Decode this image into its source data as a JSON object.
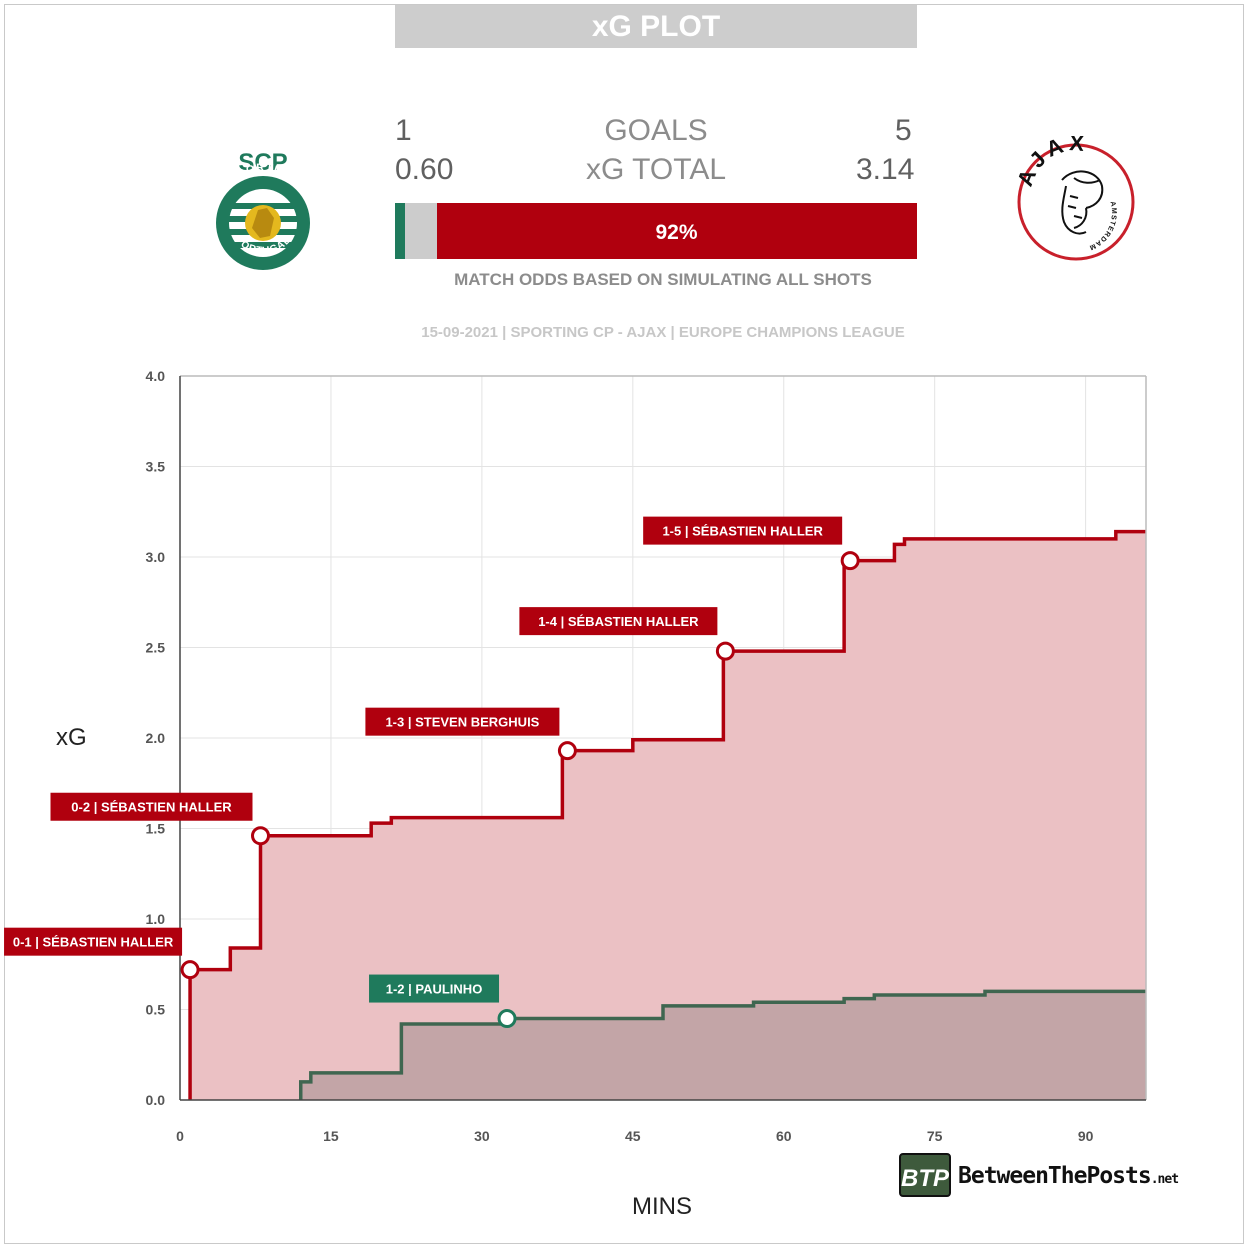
{
  "header": {
    "title": "xG PLOT"
  },
  "scoreboard": {
    "home": {
      "goals": "1",
      "xg": "0.60"
    },
    "away": {
      "goals": "5",
      "xg": "3.14"
    },
    "goals_label": "GOALS",
    "xg_label": "xG TOTAL"
  },
  "odds": {
    "home_win": 0.02,
    "draw": 0.06,
    "away_win": 0.92,
    "away_label": "92%",
    "caption": "MATCH ODDS BASED ON SIMULATING ALL SHOTS"
  },
  "match_info": "15-09-2021 | SPORTING CP - AJAX | EUROPE CHAMPIONS LEAGUE",
  "logos": {
    "home_logo": "sporting-cp-crest",
    "home_lettering": [
      "SCP",
      "SPORTING",
      "PORTUGAL"
    ],
    "away_logo": "ajax-crest",
    "away_lettering": [
      "AJAX",
      "AMSTERDAM"
    ]
  },
  "colors": {
    "home": "#1f7a5c",
    "home_line": "#3f6650",
    "away": "#b0000e",
    "away_fill": "#ebc1c4",
    "draw": "#cccccc"
  },
  "chart_data": {
    "type": "line",
    "title": "",
    "xlabel": "MINS",
    "ylabel": "xG",
    "xlim": [
      0,
      96
    ],
    "ylim": [
      0,
      4
    ],
    "x_ticks": [
      0,
      15,
      30,
      45,
      60,
      75,
      90
    ],
    "y_ticks": [
      "0.0",
      "0.5",
      "1.0",
      "1.5",
      "2.0",
      "2.5",
      "3.0",
      "3.5",
      "4.0"
    ],
    "grid": true,
    "series": [
      {
        "team": "away",
        "x": [
          1,
          5,
          8,
          19,
          21,
          38,
          45,
          54,
          66,
          71,
          72,
          93,
          96
        ],
        "y": [
          0.72,
          0.84,
          1.46,
          1.53,
          1.56,
          1.93,
          1.99,
          2.48,
          2.98,
          3.07,
          3.1,
          3.14,
          3.14
        ]
      },
      {
        "team": "home",
        "x": [
          12,
          13,
          22,
          32,
          48,
          57,
          66,
          69,
          80,
          96
        ],
        "y": [
          0.1,
          0.15,
          0.42,
          0.45,
          0.52,
          0.54,
          0.56,
          0.58,
          0.6,
          0.6
        ]
      }
    ],
    "annotations": [
      {
        "team": "away",
        "x": 1,
        "y": 0.72,
        "text": "0-1 | SÉBASTIEN HALLER"
      },
      {
        "team": "away",
        "x": 8,
        "y": 1.46,
        "text": "0-2 | SÉBASTIEN HALLER"
      },
      {
        "team": "home",
        "x": 32.5,
        "y": 0.45,
        "text": "1-2 | PAULINHO"
      },
      {
        "team": "away",
        "x": 38.5,
        "y": 1.93,
        "text": "1-3 | STEVEN BERGHUIS"
      },
      {
        "team": "away",
        "x": 54.2,
        "y": 2.48,
        "text": "1-4 | SÉBASTIEN HALLER"
      },
      {
        "team": "away",
        "x": 66.6,
        "y": 2.98,
        "text": "1-5 | SÉBASTIEN HALLER"
      }
    ]
  },
  "branding": {
    "name": "BetweenThePosts",
    "suffix": ".net",
    "badge": "BTP"
  }
}
